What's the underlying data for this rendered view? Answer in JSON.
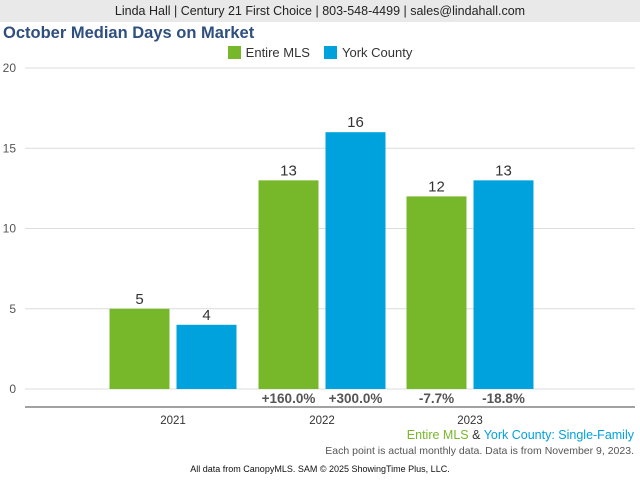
{
  "header": {
    "text": "Linda Hall | Century 21 First Choice | 803-548-4499 | sales@lindahall.com"
  },
  "chart_data": {
    "type": "bar",
    "title": "October Median Days on Market",
    "categories": [
      "2021",
      "2022",
      "2023"
    ],
    "series": [
      {
        "name": "Entire MLS",
        "color": "#77b82a",
        "values": [
          5,
          13,
          12
        ],
        "changes": [
          "",
          "+160.0%",
          "-7.7%"
        ]
      },
      {
        "name": "York County",
        "color": "#00a2dd",
        "values": [
          4,
          16,
          13
        ],
        "changes": [
          "",
          "+300.0%",
          "-18.8%"
        ]
      }
    ],
    "yticks": [
      "0",
      "5",
      "10",
      "15",
      "20"
    ],
    "ylim": [
      0,
      20
    ],
    "grid": true,
    "legend_position": "top-center"
  },
  "subtitle": {
    "part1": "Entire MLS",
    "part2": " & ",
    "part3": "York County",
    "part4": ": Single-Family"
  },
  "note": "Each point is actual monthly data. Data is from November 9, 2023.",
  "footer": "All data from CanopyMLS. SAM © 2025 ShowingTime Plus, LLC."
}
